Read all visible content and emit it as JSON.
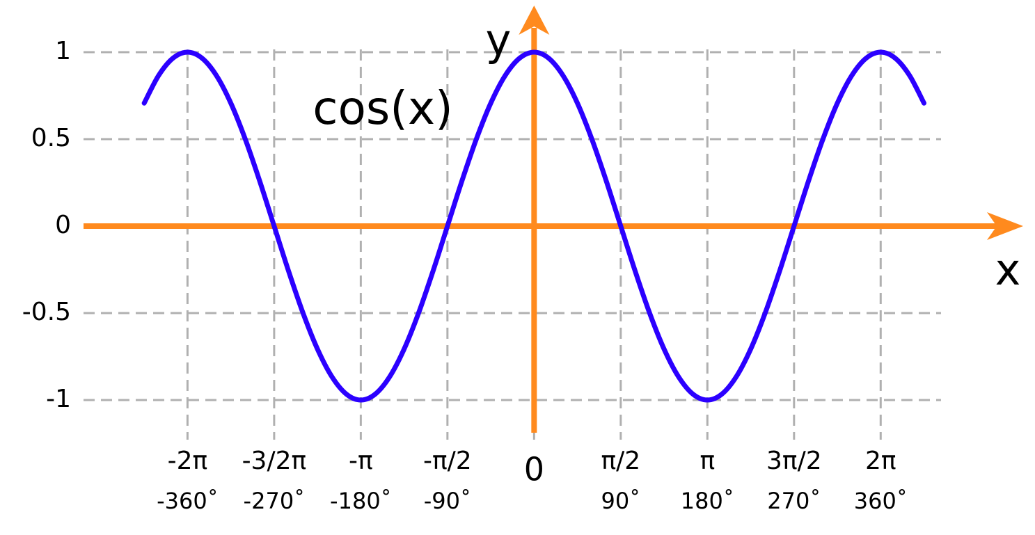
{
  "chart_data": {
    "type": "line",
    "xlabel": "x",
    "ylabel": "y",
    "x": [
      -405,
      -390,
      -375,
      -360,
      -345,
      -330,
      -315,
      -300,
      -285,
      -270,
      -255,
      -240,
      -225,
      -210,
      -195,
      -180,
      -165,
      -150,
      -135,
      -120,
      -105,
      -90,
      -75,
      -60,
      -45,
      -30,
      -15,
      0,
      15,
      30,
      45,
      60,
      75,
      90,
      105,
      120,
      135,
      150,
      165,
      180,
      195,
      210,
      225,
      240,
      255,
      270,
      285,
      300,
      315,
      330,
      345,
      360,
      375,
      390,
      405
    ],
    "series": [
      {
        "name": "cos(x)",
        "color": "#2b00ff",
        "values": [
          0.707,
          0.866,
          0.966,
          1,
          0.966,
          0.866,
          0.707,
          0.5,
          0.259,
          0,
          -0.259,
          -0.5,
          -0.707,
          -0.866,
          -0.966,
          -1,
          -0.966,
          -0.866,
          -0.707,
          -0.5,
          -0.259,
          0,
          0.259,
          0.5,
          0.707,
          0.866,
          0.966,
          1,
          0.966,
          0.866,
          0.707,
          0.5,
          0.259,
          0,
          -0.259,
          -0.5,
          -0.707,
          -0.866,
          -0.966,
          -1,
          -0.966,
          -0.866,
          -0.707,
          -0.5,
          -0.259,
          0,
          0.259,
          0.5,
          0.707,
          0.866,
          0.966,
          1,
          0.966,
          0.866,
          0.707
        ]
      }
    ],
    "xlim": [
      -468,
      508
    ],
    "ylim": [
      -1.2,
      1.2
    ],
    "xticks": [
      {
        "value": -360,
        "label": "-2π"
      },
      {
        "value": -270,
        "label": "-3/2π"
      },
      {
        "value": -180,
        "label": "-π"
      },
      {
        "value": -90,
        "label": "-π/2"
      },
      0,
      {
        "value": 90,
        "label": "π/2"
      },
      {
        "value": 180,
        "label": "π"
      },
      {
        "value": 270,
        "label": "3π/2"
      },
      {
        "value": 360,
        "label": "2π"
      }
    ],
    "xtick_degree_labels": [
      "-360˚",
      "-270˚",
      "-180˚",
      "-90˚",
      null,
      "90˚",
      "180˚",
      "270˚",
      "360˚"
    ],
    "yticks": [
      1,
      0.5,
      0,
      -0.5,
      -1
    ],
    "grid": true,
    "axis_color": "#ff8a1e"
  }
}
